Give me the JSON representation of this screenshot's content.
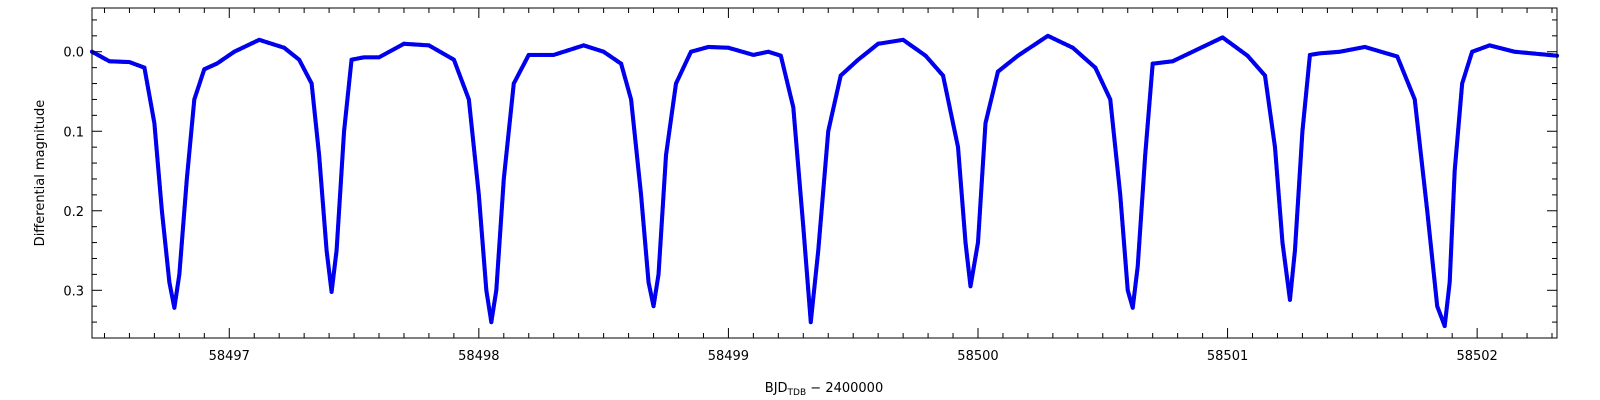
{
  "chart_data": {
    "type": "scatter",
    "title": "",
    "xlabel_main": "BJD",
    "xlabel_sub": "TDB",
    "xlabel_rest": " − 2400000",
    "ylabel": "Differential magnitude",
    "xlim": [
      58496.45,
      58502.32
    ],
    "ylim": [
      0.36,
      -0.055
    ],
    "y_inverted": true,
    "x_ticks": [
      58497,
      58498,
      58499,
      58500,
      58501,
      58502
    ],
    "x_tick_labels": [
      "58497",
      "58498",
      "58499",
      "58500",
      "58501",
      "58502"
    ],
    "y_ticks": [
      0.0,
      0.1,
      0.2,
      0.3
    ],
    "y_tick_labels": [
      "0.0",
      "0.1",
      "0.2",
      "0.3"
    ],
    "grid": false,
    "legend": "none",
    "series_color": "#0000ee",
    "series": [
      {
        "x": [
          58496.45,
          58496.52,
          58496.6,
          58496.66,
          58496.7,
          58496.73,
          58496.76,
          58496.78,
          58496.8,
          58496.83,
          58496.86,
          58496.9,
          58496.95,
          58497.02,
          58497.12,
          58497.22,
          58497.28,
          58497.33,
          58497.36,
          58497.39,
          58497.41,
          58497.43,
          58497.46,
          58497.49,
          58497.54,
          58497.6,
          58497.7,
          58497.8,
          58497.9,
          58497.96,
          58498.0,
          58498.03,
          58498.05,
          58498.07,
          58498.1,
          58498.14,
          58498.2,
          58498.3,
          58498.42,
          58498.5,
          58498.57,
          58498.61,
          58498.65,
          58498.68,
          58498.7,
          58498.72,
          58498.75,
          58498.79,
          58498.85,
          58498.92,
          58499.0,
          58499.1,
          58499.16,
          58499.21,
          58499.26,
          58499.3,
          58499.33,
          58499.36,
          58499.4,
          58499.45,
          58499.52,
          58499.6,
          58499.7,
          58499.79,
          58499.86,
          58499.92,
          58499.95,
          58499.97,
          58500.0,
          58500.03,
          58500.08,
          58500.16,
          58500.28,
          58500.38,
          58500.47,
          58500.53,
          58500.57,
          58500.6,
          58500.62,
          58500.64,
          58500.67,
          58500.7,
          58500.78,
          58500.86,
          58500.98,
          58501.08,
          58501.15,
          58501.19,
          58501.22,
          58501.25,
          58501.27,
          58501.3,
          58501.33,
          58501.37,
          58501.45,
          58501.55,
          58501.68,
          58501.75,
          58501.8,
          58501.84,
          58501.87,
          58501.89,
          58501.91,
          58501.94,
          58501.98,
          58502.05,
          58502.15,
          58502.32
        ],
        "y": [
          0.0,
          0.012,
          0.013,
          0.02,
          0.09,
          0.2,
          0.29,
          0.322,
          0.28,
          0.16,
          0.06,
          0.022,
          0.015,
          0.0,
          -0.015,
          -0.005,
          0.01,
          0.04,
          0.13,
          0.25,
          0.302,
          0.25,
          0.1,
          0.01,
          0.007,
          0.007,
          -0.01,
          -0.008,
          0.01,
          0.06,
          0.18,
          0.3,
          0.34,
          0.3,
          0.16,
          0.04,
          0.004,
          0.004,
          -0.008,
          0.0,
          0.015,
          0.06,
          0.18,
          0.29,
          0.32,
          0.28,
          0.13,
          0.04,
          0.0,
          -0.006,
          -0.005,
          0.004,
          0.0,
          0.005,
          0.07,
          0.22,
          0.34,
          0.25,
          0.1,
          0.03,
          0.01,
          -0.01,
          -0.015,
          0.005,
          0.03,
          0.12,
          0.24,
          0.295,
          0.24,
          0.09,
          0.025,
          0.005,
          -0.02,
          -0.005,
          0.02,
          0.06,
          0.18,
          0.3,
          0.322,
          0.27,
          0.13,
          0.015,
          0.012,
          0.0,
          -0.018,
          0.005,
          0.03,
          0.12,
          0.24,
          0.312,
          0.25,
          0.1,
          0.004,
          0.002,
          0.0,
          -0.006,
          0.006,
          0.06,
          0.2,
          0.32,
          0.345,
          0.29,
          0.15,
          0.04,
          0.0,
          -0.008,
          0.0,
          0.005
        ]
      }
    ]
  }
}
